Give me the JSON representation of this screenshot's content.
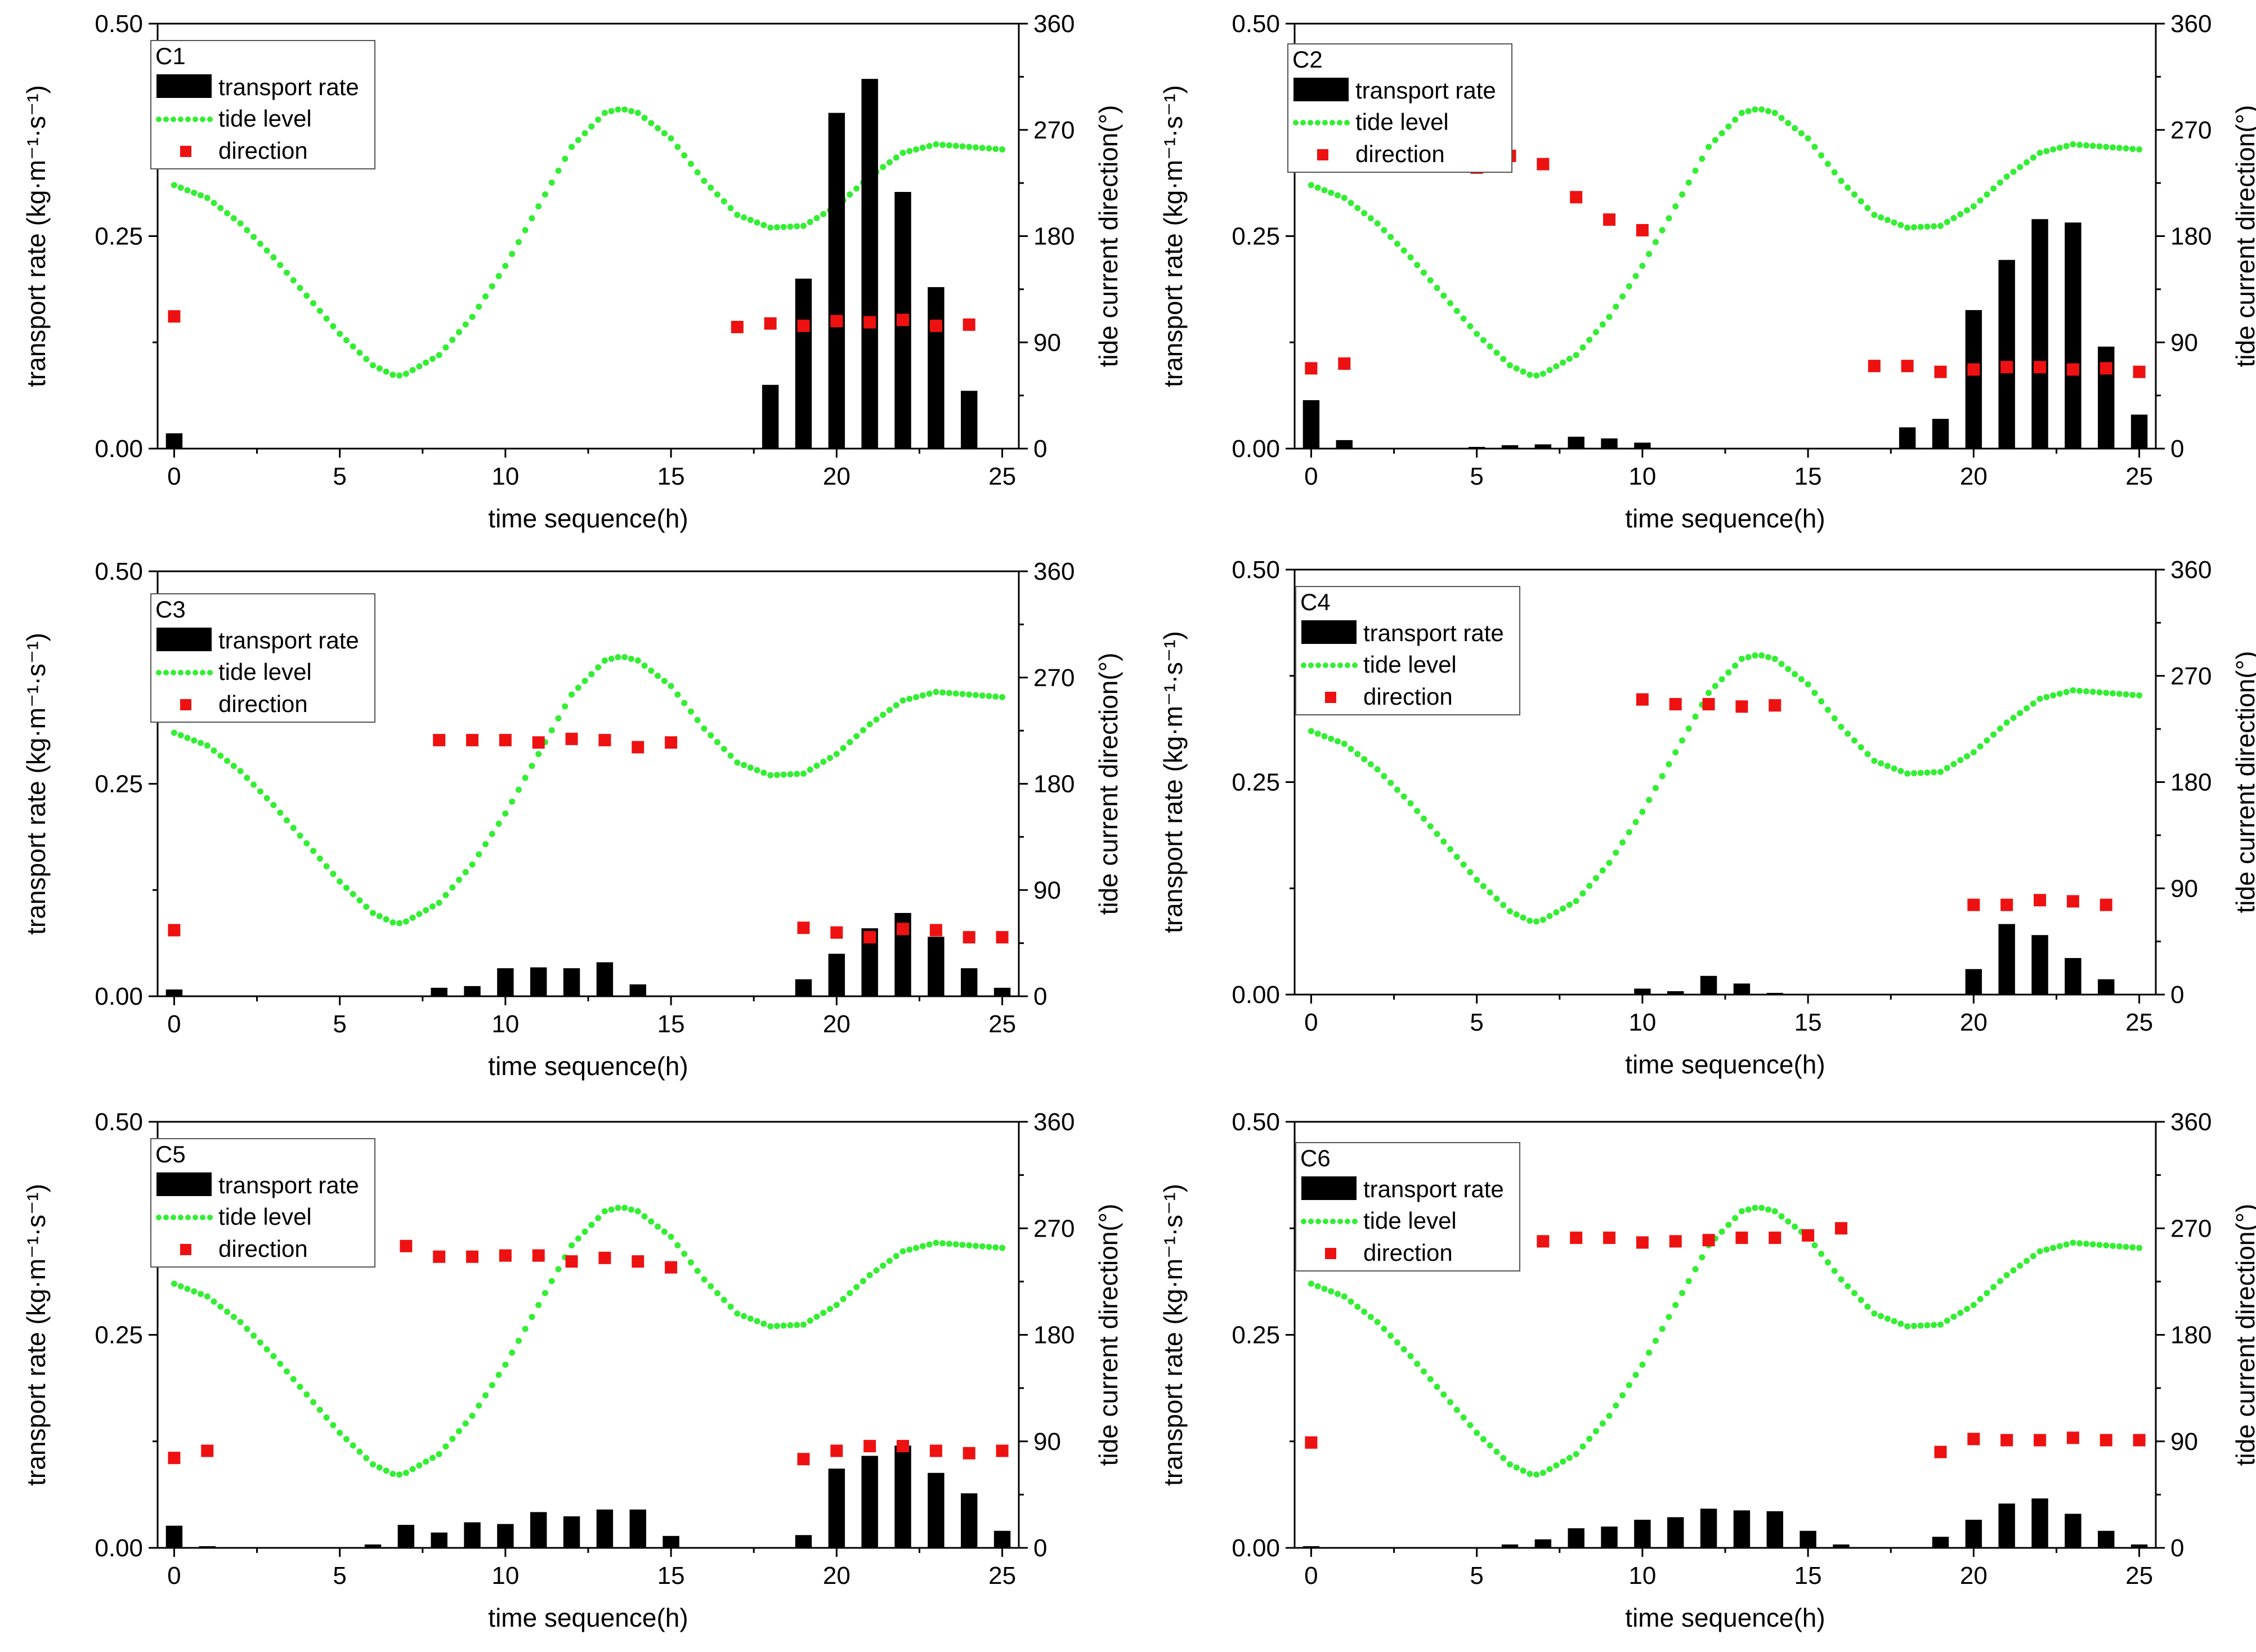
{
  "figure": {
    "legend_labels": {
      "transport": "transport rate",
      "tide": "tide level",
      "direction": "direction"
    },
    "colors": {
      "bars": "#000000",
      "tide": "#33ee33",
      "direction": "#ee1111",
      "axis": "#000000"
    }
  },
  "chart_data": [
    {
      "id": "C1",
      "type": "bar+line+scatter",
      "title": "C1",
      "xlabel": "time sequence(h)",
      "ylabel": "transport rate (kg·m⁻¹·s⁻¹)",
      "y2label": "tide current direction(°)",
      "xlim": [
        -0.5,
        25.5
      ],
      "ylim": [
        0,
        0.5
      ],
      "y2lim": [
        0,
        360
      ],
      "xticks": [
        "0",
        "5",
        "10",
        "15",
        "20",
        "25"
      ],
      "yticks": [
        "0.00",
        "0.25",
        "0.50"
      ],
      "y2ticks": [
        "0",
        "90",
        "180",
        "270",
        "360"
      ],
      "bars": {
        "x": [
          0,
          18,
          19,
          20,
          21,
          22,
          23,
          24
        ],
        "values": [
          0.018,
          0.075,
          0.2,
          0.395,
          0.435,
          0.302,
          0.19,
          0.068
        ]
      },
      "direction": {
        "x": [
          0,
          17,
          18,
          19,
          20,
          21,
          22,
          23,
          24
        ],
        "values": [
          112,
          103,
          106,
          104,
          108,
          107,
          109,
          104,
          105
        ]
      },
      "tide_level": {
        "x": [
          0,
          1,
          2,
          3,
          4,
          5,
          6,
          6.7,
          7,
          8,
          9,
          10,
          11,
          12,
          13,
          13.5,
          14,
          15,
          16,
          17,
          18,
          19,
          20,
          21,
          22,
          23,
          24,
          25
        ],
        "values": [
          0.31,
          0.295,
          0.265,
          0.225,
          0.18,
          0.135,
          0.098,
          0.085,
          0.088,
          0.11,
          0.155,
          0.215,
          0.285,
          0.355,
          0.395,
          0.4,
          0.395,
          0.365,
          0.315,
          0.275,
          0.26,
          0.262,
          0.285,
          0.32,
          0.348,
          0.358,
          0.355,
          0.352
        ]
      }
    },
    {
      "id": "C2",
      "type": "bar+line+scatter",
      "title": "C2",
      "xlabel": "time sequence(h)",
      "ylabel": "transport rate (kg·m⁻¹·s⁻¹)",
      "y2label": "tide current direction(°)",
      "xlim": [
        -0.5,
        25.5
      ],
      "ylim": [
        0,
        0.5
      ],
      "y2lim": [
        0,
        360
      ],
      "xticks": [
        "0",
        "5",
        "10",
        "15",
        "20",
        "25"
      ],
      "yticks": [
        "0.00",
        "0.25",
        "0.50"
      ],
      "y2ticks": [
        "0",
        "90",
        "180",
        "270",
        "360"
      ],
      "bars": {
        "x": [
          0,
          1,
          5,
          6,
          7,
          8,
          9,
          10,
          18,
          19,
          20,
          21,
          22,
          23,
          24,
          25
        ],
        "values": [
          0.057,
          0.01,
          0.002,
          0.004,
          0.005,
          0.014,
          0.012,
          0.007,
          0.025,
          0.035,
          0.163,
          0.222,
          0.27,
          0.266,
          0.12,
          0.04
        ]
      },
      "direction": {
        "x": [
          0,
          1,
          5,
          6,
          7,
          8,
          9,
          10,
          17,
          18,
          19,
          20,
          21,
          22,
          23,
          24,
          25
        ],
        "values": [
          68,
          72,
          238,
          248,
          241,
          213,
          194,
          185,
          70,
          70,
          65,
          67,
          69,
          69,
          67,
          68,
          65
        ]
      },
      "tide_level": {
        "x": [
          0,
          1,
          2,
          3,
          4,
          5,
          6,
          6.7,
          7,
          8,
          9,
          10,
          11,
          12,
          13,
          13.5,
          14,
          15,
          16,
          17,
          18,
          19,
          20,
          21,
          22,
          23,
          24,
          25
        ],
        "values": [
          0.31,
          0.295,
          0.265,
          0.225,
          0.18,
          0.135,
          0.098,
          0.085,
          0.088,
          0.11,
          0.155,
          0.215,
          0.285,
          0.355,
          0.395,
          0.4,
          0.395,
          0.365,
          0.315,
          0.275,
          0.26,
          0.262,
          0.285,
          0.32,
          0.348,
          0.358,
          0.355,
          0.352
        ]
      }
    },
    {
      "id": "C3",
      "type": "bar+line+scatter",
      "title": "C3",
      "xlabel": "time sequence(h)",
      "ylabel": "transport rate (kg·m⁻¹·s⁻¹)",
      "y2label": "tide current direction(°)",
      "xlim": [
        -0.5,
        25.5
      ],
      "ylim": [
        0,
        0.5
      ],
      "y2lim": [
        0,
        360
      ],
      "xticks": [
        "0",
        "5",
        "10",
        "15",
        "20",
        "25"
      ],
      "yticks": [
        "0.00",
        "0.25",
        "0.50"
      ],
      "y2ticks": [
        "0",
        "90",
        "180",
        "270",
        "360"
      ],
      "bars": {
        "x": [
          0,
          8,
          9,
          10,
          11,
          12,
          13,
          14,
          19,
          20,
          21,
          22,
          23,
          24,
          25
        ],
        "values": [
          0.008,
          0.01,
          0.012,
          0.033,
          0.034,
          0.033,
          0.04,
          0.014,
          0.02,
          0.05,
          0.08,
          0.098,
          0.07,
          0.033,
          0.01
        ]
      },
      "direction": {
        "x": [
          0,
          8,
          9,
          10,
          11,
          12,
          13,
          14,
          15,
          19,
          20,
          21,
          22,
          23,
          24,
          25
        ],
        "values": [
          56,
          217,
          217,
          217,
          215,
          218,
          217,
          211,
          215,
          58,
          54,
          50,
          57,
          56,
          50,
          50
        ]
      },
      "tide_level": {
        "x": [
          0,
          1,
          2,
          3,
          4,
          5,
          6,
          6.7,
          7,
          8,
          9,
          10,
          11,
          12,
          13,
          13.5,
          14,
          15,
          16,
          17,
          18,
          19,
          20,
          21,
          22,
          23,
          24,
          25
        ],
        "values": [
          0.31,
          0.295,
          0.265,
          0.225,
          0.18,
          0.135,
          0.098,
          0.085,
          0.088,
          0.11,
          0.155,
          0.215,
          0.285,
          0.355,
          0.395,
          0.4,
          0.395,
          0.365,
          0.315,
          0.275,
          0.26,
          0.262,
          0.285,
          0.32,
          0.348,
          0.358,
          0.355,
          0.352
        ]
      }
    },
    {
      "id": "C4",
      "type": "bar+line+scatter",
      "title": "C4",
      "xlabel": "time sequence(h)",
      "ylabel": "transport rate (kg·m⁻¹·s⁻¹)",
      "y2label": "tide current direction(°)",
      "xlim": [
        -0.5,
        25.5
      ],
      "ylim": [
        0,
        0.5
      ],
      "y2lim": [
        0,
        360
      ],
      "xticks": [
        "0",
        "5",
        "10",
        "15",
        "20",
        "25"
      ],
      "yticks": [
        "0.00",
        "0.25",
        "0.50"
      ],
      "y2ticks": [
        "0",
        "90",
        "180",
        "270",
        "360"
      ],
      "bars": {
        "x": [
          10,
          11,
          12,
          13,
          14,
          20,
          21,
          22,
          23,
          24
        ],
        "values": [
          0.007,
          0.004,
          0.022,
          0.013,
          0.002,
          0.03,
          0.083,
          0.07,
          0.043,
          0.018
        ]
      },
      "direction": {
        "x": [
          10,
          11,
          12,
          13,
          14,
          20,
          21,
          22,
          23,
          24
        ],
        "values": [
          250,
          246,
          246,
          244,
          245,
          76,
          76,
          80,
          79,
          76
        ]
      },
      "tide_level": {
        "x": [
          0,
          1,
          2,
          3,
          4,
          5,
          6,
          6.7,
          7,
          8,
          9,
          10,
          11,
          12,
          13,
          13.5,
          14,
          15,
          16,
          17,
          18,
          19,
          20,
          21,
          22,
          23,
          24,
          25
        ],
        "values": [
          0.31,
          0.295,
          0.265,
          0.225,
          0.18,
          0.135,
          0.098,
          0.085,
          0.088,
          0.11,
          0.155,
          0.215,
          0.285,
          0.355,
          0.395,
          0.4,
          0.395,
          0.365,
          0.315,
          0.275,
          0.26,
          0.262,
          0.285,
          0.32,
          0.348,
          0.358,
          0.355,
          0.352
        ]
      }
    },
    {
      "id": "C5",
      "type": "bar+line+scatter",
      "title": "C5",
      "xlabel": "time sequence(h)",
      "ylabel": "transport rate (kg·m⁻¹·s⁻¹)",
      "y2label": "tide current direction(°)",
      "xlim": [
        -0.5,
        25.5
      ],
      "ylim": [
        0,
        0.5
      ],
      "y2lim": [
        0,
        360
      ],
      "xticks": [
        "0",
        "5",
        "10",
        "15",
        "20",
        "25"
      ],
      "yticks": [
        "0.00",
        "0.25",
        "0.50"
      ],
      "y2ticks": [
        "0",
        "90",
        "180",
        "270",
        "360"
      ],
      "bars": {
        "x": [
          0,
          1,
          6,
          7,
          8,
          9,
          10,
          11,
          12,
          13,
          14,
          15,
          19,
          20,
          21,
          22,
          23,
          24,
          25
        ],
        "values": [
          0.026,
          0.002,
          0.004,
          0.027,
          0.018,
          0.03,
          0.028,
          0.042,
          0.037,
          0.045,
          0.045,
          0.014,
          0.015,
          0.093,
          0.108,
          0.12,
          0.088,
          0.064,
          0.02
        ]
      },
      "direction": {
        "x": [
          0,
          1,
          7,
          8,
          9,
          10,
          11,
          12,
          13,
          14,
          15,
          19,
          20,
          21,
          22,
          23,
          24,
          25
        ],
        "values": [
          76,
          82,
          255,
          246,
          246,
          247,
          247,
          242,
          245,
          242,
          237,
          75,
          82,
          86,
          86,
          82,
          80,
          82
        ]
      },
      "tide_level": {
        "x": [
          0,
          1,
          2,
          3,
          4,
          5,
          6,
          6.7,
          7,
          8,
          9,
          10,
          11,
          12,
          13,
          13.5,
          14,
          15,
          16,
          17,
          18,
          19,
          20,
          21,
          22,
          23,
          24,
          25
        ],
        "values": [
          0.31,
          0.295,
          0.265,
          0.225,
          0.18,
          0.135,
          0.098,
          0.085,
          0.088,
          0.11,
          0.155,
          0.215,
          0.285,
          0.355,
          0.395,
          0.4,
          0.395,
          0.365,
          0.315,
          0.275,
          0.26,
          0.262,
          0.285,
          0.32,
          0.348,
          0.358,
          0.355,
          0.352
        ]
      }
    },
    {
      "id": "C6",
      "type": "bar+line+scatter",
      "title": "C6",
      "xlabel": "time sequence(h)",
      "ylabel": "transport rate (kg·m⁻¹·s⁻¹)",
      "y2label": "tide current direction(°)",
      "xlim": [
        -0.5,
        25.5
      ],
      "ylim": [
        0,
        0.5
      ],
      "y2lim": [
        0,
        360
      ],
      "xticks": [
        "0",
        "5",
        "10",
        "15",
        "20",
        "25"
      ],
      "yticks": [
        "0.00",
        "0.25",
        "0.50"
      ],
      "y2ticks": [
        "0",
        "90",
        "180",
        "270",
        "360"
      ],
      "bars": {
        "x": [
          0,
          6,
          7,
          8,
          9,
          10,
          11,
          12,
          13,
          14,
          15,
          16,
          19,
          20,
          21,
          22,
          23,
          24,
          25
        ],
        "values": [
          0.002,
          0.004,
          0.01,
          0.023,
          0.025,
          0.033,
          0.036,
          0.046,
          0.044,
          0.043,
          0.02,
          0.004,
          0.013,
          0.033,
          0.052,
          0.058,
          0.04,
          0.02,
          0.004
        ]
      },
      "direction": {
        "x": [
          0,
          7,
          8,
          9,
          10,
          11,
          12,
          13,
          14,
          15,
          16,
          19,
          20,
          21,
          22,
          23,
          24,
          25
        ],
        "values": [
          89,
          259,
          262,
          262,
          258,
          259,
          260,
          262,
          262,
          264,
          270,
          81,
          92,
          91,
          91,
          93,
          91,
          91
        ]
      },
      "tide_level": {
        "x": [
          0,
          1,
          2,
          3,
          4,
          5,
          6,
          6.7,
          7,
          8,
          9,
          10,
          11,
          12,
          13,
          13.5,
          14,
          15,
          16,
          17,
          18,
          19,
          20,
          21,
          22,
          23,
          24,
          25
        ],
        "values": [
          0.31,
          0.295,
          0.265,
          0.225,
          0.18,
          0.135,
          0.098,
          0.085,
          0.088,
          0.11,
          0.155,
          0.215,
          0.285,
          0.355,
          0.395,
          0.4,
          0.395,
          0.365,
          0.315,
          0.275,
          0.26,
          0.262,
          0.285,
          0.32,
          0.348,
          0.358,
          0.355,
          0.352
        ]
      }
    }
  ]
}
